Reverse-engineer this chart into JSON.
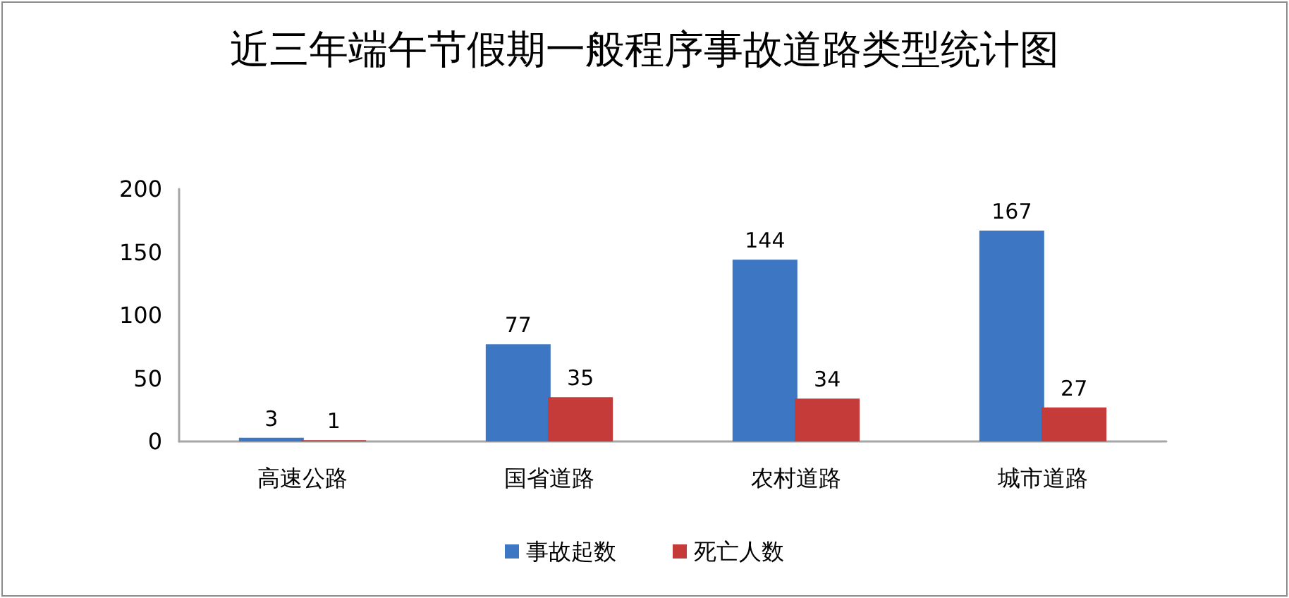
{
  "chart_data": {
    "type": "bar",
    "title": "近三年端午节假期一般程序事故道路类型统计图",
    "categories": [
      "高速公路",
      "国省道路",
      "农村道路",
      "城市道路"
    ],
    "series": [
      {
        "name": "事故起数",
        "color": "#3d76c2",
        "values": [
          3,
          77,
          144,
          167
        ]
      },
      {
        "name": "死亡人数",
        "color": "#c43b39",
        "values": [
          1,
          35,
          34,
          27
        ]
      }
    ],
    "ylim": [
      0,
      200
    ],
    "yticks": [
      0,
      50,
      100,
      150,
      200
    ],
    "grid": false,
    "legend": "bottom",
    "data_labels": true
  }
}
